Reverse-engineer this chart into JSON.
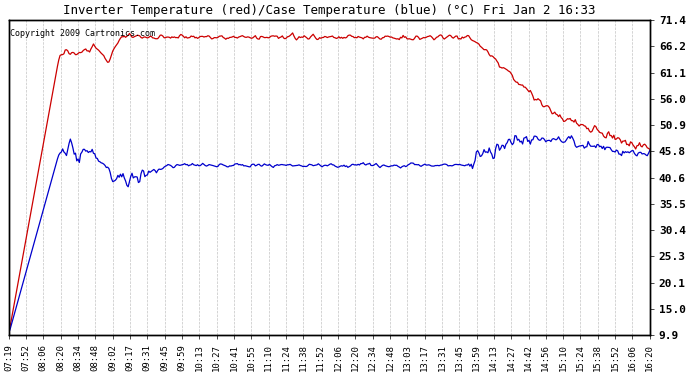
{
  "title": "Inverter Temperature (red)/Case Temperature (blue) (°C) Fri Jan 2 16:33",
  "copyright": "Copyright 2009 Cartronics.com",
  "ylabel_right_ticks": [
    9.9,
    15.0,
    20.1,
    25.3,
    30.4,
    35.5,
    40.6,
    45.8,
    50.9,
    56.0,
    61.1,
    66.2,
    71.4
  ],
  "ylim": [
    9.9,
    71.4
  ],
  "bg_color": "#ffffff",
  "plot_bg_color": "#ffffff",
  "grid_color": "#aaaaaa",
  "line_red_color": "#cc0000",
  "line_blue_color": "#0000cc",
  "x_tick_labels": [
    "07:19",
    "07:52",
    "08:06",
    "08:20",
    "08:34",
    "08:48",
    "09:02",
    "09:17",
    "09:31",
    "09:45",
    "09:59",
    "10:13",
    "10:27",
    "10:41",
    "10:55",
    "11:10",
    "11:24",
    "11:38",
    "11:52",
    "12:06",
    "12:20",
    "12:34",
    "12:48",
    "13:03",
    "13:17",
    "13:31",
    "13:45",
    "13:59",
    "14:13",
    "14:27",
    "14:42",
    "14:56",
    "15:10",
    "15:24",
    "15:38",
    "15:52",
    "16:06",
    "16:20"
  ]
}
